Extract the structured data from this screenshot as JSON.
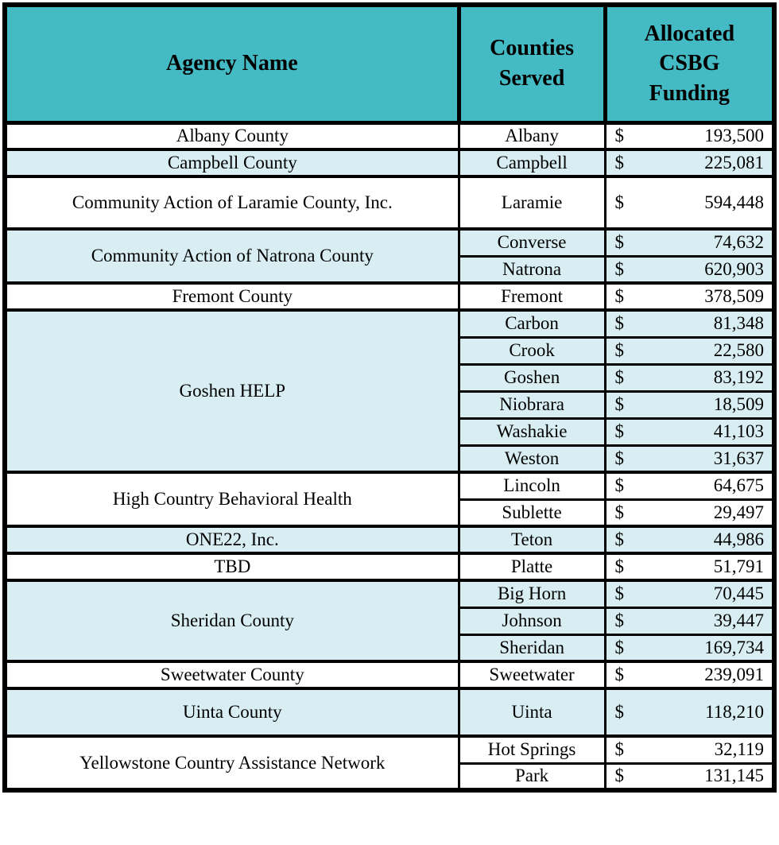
{
  "colors": {
    "header_bg": "#44BAC4",
    "row_shade_bg": "#D8EEF2",
    "border": "#000000",
    "text": "#000000"
  },
  "table": {
    "columns": [
      "Agency Name",
      "Counties Served",
      "Allocated CSBG Funding"
    ],
    "currency_symbol": "$",
    "groups": [
      {
        "agency": "Albany County",
        "rows": [
          {
            "county": "Albany",
            "amount": "193,500"
          }
        ]
      },
      {
        "agency": "Campbell County",
        "rows": [
          {
            "county": "Campbell",
            "amount": "225,081"
          }
        ]
      },
      {
        "agency": "Community Action of Laramie County, Inc.",
        "rows": [
          {
            "county": "Laramie",
            "amount": "594,448"
          }
        ]
      },
      {
        "agency": "Community Action of Natrona County",
        "rows": [
          {
            "county": "Converse",
            "amount": "74,632"
          },
          {
            "county": "Natrona",
            "amount": "620,903"
          }
        ]
      },
      {
        "agency": "Fremont County",
        "rows": [
          {
            "county": "Fremont",
            "amount": "378,509"
          }
        ]
      },
      {
        "agency": "Goshen HELP",
        "rows": [
          {
            "county": "Carbon",
            "amount": "81,348"
          },
          {
            "county": "Crook",
            "amount": "22,580"
          },
          {
            "county": "Goshen",
            "amount": "83,192"
          },
          {
            "county": "Niobrara",
            "amount": "18,509"
          },
          {
            "county": "Washakie",
            "amount": "41,103"
          },
          {
            "county": "Weston",
            "amount": "31,637"
          }
        ]
      },
      {
        "agency": "High Country Behavioral Health",
        "rows": [
          {
            "county": "Lincoln",
            "amount": "64,675"
          },
          {
            "county": "Sublette",
            "amount": "29,497"
          }
        ]
      },
      {
        "agency": "ONE22, Inc.",
        "rows": [
          {
            "county": "Teton",
            "amount": "44,986"
          }
        ]
      },
      {
        "agency": "TBD",
        "rows": [
          {
            "county": "Platte",
            "amount": "51,791"
          }
        ]
      },
      {
        "agency": "Sheridan County",
        "rows": [
          {
            "county": "Big Horn",
            "amount": "70,445"
          },
          {
            "county": "Johnson",
            "amount": "39,447"
          },
          {
            "county": "Sheridan",
            "amount": "169,734"
          }
        ]
      },
      {
        "agency": "Sweetwater County",
        "rows": [
          {
            "county": "Sweetwater",
            "amount": "239,091"
          }
        ]
      },
      {
        "agency": "Uinta County",
        "rows": [
          {
            "county": "Uinta",
            "amount": "118,210"
          }
        ]
      },
      {
        "agency": "Yellowstone Country Assistance Network",
        "rows": [
          {
            "county": "Hot Springs",
            "amount": "32,119"
          },
          {
            "county": "Park",
            "amount": "131,145"
          }
        ]
      }
    ]
  }
}
